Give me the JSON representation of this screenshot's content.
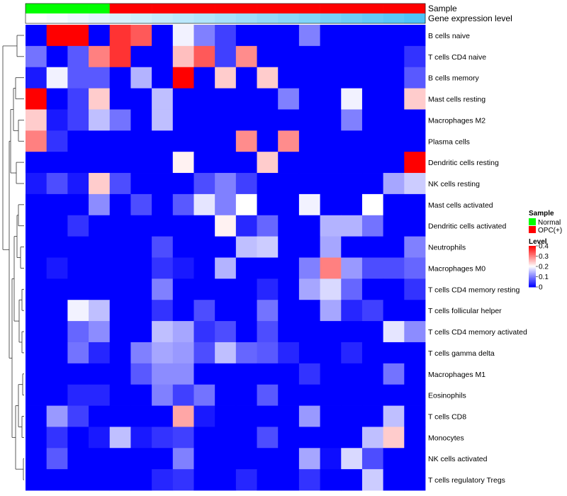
{
  "chart_data": {
    "type": "heatmap",
    "annotation_tracks": [
      {
        "label": "Sample",
        "legend_title": "Sample",
        "categories": [
          {
            "name": "Normal",
            "color": "#00ff00"
          },
          {
            "name": "OPC(+)",
            "color": "#ff0000"
          }
        ],
        "values": [
          "Normal",
          "Normal",
          "Normal",
          "Normal",
          "OPC(+)",
          "OPC(+)",
          "OPC(+)",
          "OPC(+)",
          "OPC(+)",
          "OPC(+)",
          "OPC(+)",
          "OPC(+)",
          "OPC(+)",
          "OPC(+)",
          "OPC(+)",
          "OPC(+)",
          "OPC(+)",
          "OPC(+)",
          "OPC(+)"
        ]
      },
      {
        "label": "Gene expression level",
        "colors": [
          "#ffffff",
          "#4ec3f7"
        ],
        "values": [
          0.0,
          0.055,
          0.11,
          0.165,
          0.22,
          0.275,
          0.33,
          0.385,
          0.44,
          0.5,
          0.555,
          0.61,
          0.665,
          0.72,
          0.775,
          0.83,
          0.885,
          0.94,
          1.0
        ]
      }
    ],
    "color_scale": {
      "legend_title": "Level",
      "min": 0,
      "max": 0.4,
      "colors": [
        "#0000ff",
        "#ffffff",
        "#ff0000"
      ],
      "ticks": [
        {
          "label": "0.4",
          "value": 0.4
        },
        {
          "label": "0.3",
          "value": 0.3
        },
        {
          "label": "0.2",
          "value": 0.2
        },
        {
          "label": "0.1",
          "value": 0.1
        },
        {
          "label": "0",
          "value": 0
        }
      ]
    },
    "rows": [
      "B cells naive",
      "T cells CD4 naive",
      "B cells memory",
      "Mast cells resting",
      "Macrophages M2",
      "Plasma cells",
      "Dendritic cells resting",
      "NK cells resting",
      "Mast cells activated",
      "Dendritic cells activated",
      "Neutrophils",
      "Macrophages M0",
      "T cells CD4 memory resting",
      "T cells follicular helper",
      "T cells CD4 memory activated",
      "T cells gamma delta",
      "Macrophages M1",
      "Eosinophils",
      "T cells CD8",
      "Monocytes",
      "NK cells activated",
      "T cells regulatory  Tregs"
    ],
    "values": [
      [
        0.0,
        0.4,
        0.4,
        0.0,
        0.36,
        0.33,
        0.0,
        0.19,
        0.1,
        0.05,
        0.0,
        0.0,
        0.0,
        0.1,
        0.0,
        0.0,
        0.0,
        0.0,
        0.0
      ],
      [
        0.09,
        0.0,
        0.07,
        0.3,
        0.36,
        0.0,
        0.0,
        0.25,
        0.33,
        0.05,
        0.29,
        0.0,
        0.0,
        0.0,
        0.0,
        0.0,
        0.0,
        0.0,
        0.04
      ],
      [
        0.02,
        0.19,
        0.07,
        0.07,
        0.0,
        0.14,
        0.0,
        0.4,
        0.0,
        0.24,
        0.0,
        0.24,
        0.0,
        0.0,
        0.0,
        0.0,
        0.0,
        0.0,
        0.07
      ],
      [
        0.4,
        0.0,
        0.05,
        0.24,
        0.0,
        0.0,
        0.15,
        0.0,
        0.0,
        0.0,
        0.0,
        0.0,
        0.1,
        0.0,
        0.0,
        0.19,
        0.0,
        0.0,
        0.24
      ],
      [
        0.24,
        0.02,
        0.05,
        0.15,
        0.09,
        0.0,
        0.15,
        0.0,
        0.0,
        0.0,
        0.0,
        0.0,
        0.0,
        0.0,
        0.0,
        0.1,
        0.0,
        0.0,
        0.0
      ],
      [
        0.3,
        0.04,
        0.0,
        0.0,
        0.0,
        0.0,
        0.0,
        0.0,
        0.0,
        0.0,
        0.29,
        0.0,
        0.29,
        0.0,
        0.0,
        0.0,
        0.0,
        0.0,
        0.0
      ],
      [
        0.0,
        0.0,
        0.0,
        0.0,
        0.0,
        0.0,
        0.0,
        0.21,
        0.0,
        0.0,
        0.0,
        0.24,
        0.0,
        0.0,
        0.0,
        0.0,
        0.0,
        0.0,
        0.4
      ],
      [
        0.02,
        0.06,
        0.02,
        0.24,
        0.06,
        0.0,
        0.0,
        0.0,
        0.06,
        0.1,
        0.05,
        0.0,
        0.0,
        0.0,
        0.0,
        0.0,
        0.0,
        0.13,
        0.16
      ],
      [
        0.0,
        0.0,
        0.0,
        0.11,
        0.0,
        0.06,
        0.0,
        0.07,
        0.18,
        0.1,
        0.2,
        0.0,
        0.0,
        0.19,
        0.0,
        0.0,
        0.2,
        0.0,
        0.0
      ],
      [
        0.0,
        0.0,
        0.04,
        0.0,
        0.0,
        0.0,
        0.0,
        0.0,
        0.0,
        0.21,
        0.03,
        0.08,
        0.0,
        0.0,
        0.14,
        0.14,
        0.09,
        0.0,
        0.0
      ],
      [
        0.0,
        0.0,
        0.0,
        0.0,
        0.0,
        0.0,
        0.06,
        0.0,
        0.0,
        0.0,
        0.15,
        0.16,
        0.0,
        0.0,
        0.13,
        0.0,
        0.0,
        0.0,
        0.1
      ],
      [
        0.0,
        0.02,
        0.0,
        0.0,
        0.0,
        0.0,
        0.04,
        0.02,
        0.0,
        0.14,
        0.0,
        0.0,
        0.0,
        0.1,
        0.3,
        0.12,
        0.06,
        0.06,
        0.08
      ],
      [
        0.0,
        0.0,
        0.0,
        0.0,
        0.0,
        0.0,
        0.1,
        0.0,
        0.0,
        0.0,
        0.0,
        0.03,
        0.0,
        0.13,
        0.17,
        0.08,
        0.0,
        0.0,
        0.04
      ],
      [
        0.0,
        0.0,
        0.19,
        0.15,
        0.0,
        0.0,
        0.04,
        0.0,
        0.06,
        0.0,
        0.0,
        0.09,
        0.0,
        0.0,
        0.13,
        0.03,
        0.05,
        0.0,
        0.0
      ],
      [
        0.0,
        0.0,
        0.08,
        0.11,
        0.0,
        0.0,
        0.15,
        0.13,
        0.04,
        0.06,
        0.0,
        0.06,
        0.0,
        0.0,
        0.0,
        0.0,
        0.0,
        0.18,
        0.11
      ],
      [
        0.0,
        0.0,
        0.09,
        0.03,
        0.0,
        0.1,
        0.13,
        0.12,
        0.06,
        0.15,
        0.08,
        0.07,
        0.03,
        0.0,
        0.0,
        0.03,
        0.0,
        0.0,
        0.0
      ],
      [
        0.0,
        0.0,
        0.0,
        0.0,
        0.0,
        0.07,
        0.11,
        0.11,
        0.0,
        0.0,
        0.0,
        0.0,
        0.0,
        0.04,
        0.0,
        0.0,
        0.0,
        0.09,
        0.0
      ],
      [
        0.0,
        0.0,
        0.03,
        0.03,
        0.0,
        0.0,
        0.1,
        0.05,
        0.09,
        0.0,
        0.0,
        0.07,
        0.0,
        0.0,
        0.0,
        0.0,
        0.0,
        0.0,
        0.0
      ],
      [
        0.0,
        0.12,
        0.05,
        0.0,
        0.0,
        0.0,
        0.0,
        0.27,
        0.02,
        0.0,
        0.0,
        0.0,
        0.0,
        0.12,
        0.0,
        0.0,
        0.0,
        0.15,
        0.0
      ],
      [
        0.0,
        0.04,
        0.0,
        0.02,
        0.15,
        0.02,
        0.04,
        0.05,
        0.0,
        0.0,
        0.0,
        0.06,
        0.0,
        0.0,
        0.0,
        0.0,
        0.15,
        0.24,
        0.0
      ],
      [
        0.0,
        0.07,
        0.0,
        0.0,
        0.0,
        0.0,
        0.0,
        0.1,
        0.0,
        0.0,
        0.0,
        0.0,
        0.0,
        0.13,
        0.01,
        0.17,
        0.06,
        0.0,
        0.0
      ],
      [
        0.0,
        0.0,
        0.0,
        0.0,
        0.0,
        0.0,
        0.03,
        0.04,
        0.0,
        0.0,
        0.03,
        0.0,
        0.0,
        0.04,
        0.0,
        0.0,
        0.16,
        0.0,
        0.0
      ]
    ],
    "dendrogram": "row clustering tree on left",
    "legend_position": "right"
  }
}
